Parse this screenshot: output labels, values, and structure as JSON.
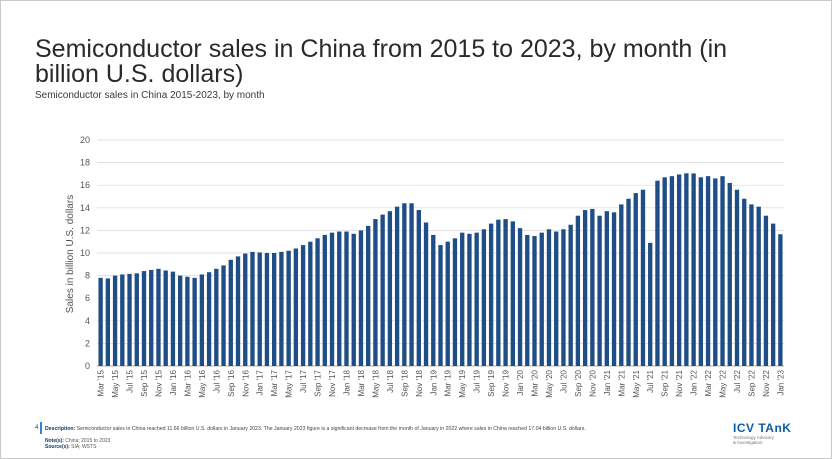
{
  "page": {
    "title": "Semiconductor sales in China from 2015 to 2023, by month (in billion U.S. dollars)",
    "subtitle": "Semiconductor sales in China 2015-2023, by month",
    "page_number": "4",
    "description_label": "Description:",
    "description_text": "Semiconductor sales in China reached 11.66 billion U.S. dollars in January 2023. The January 2023 figure is a significant decrease from the month of January in 2022 where sales in China reached 17.04 billion U.S. dollars.",
    "note_label": "Note(s):",
    "note_text": "China; 2015 to 2023",
    "source_label": "Source(s):",
    "source_text": "SIA; WSTS",
    "logo_text": "ICV TAnK",
    "logo_sub1": "Technology Advisory",
    "logo_sub2": "& Investigation"
  },
  "colors": {
    "bar": "#1f4e86",
    "grid": "#d9d9d9",
    "axis_text": "#555555"
  },
  "chart_data": {
    "type": "bar",
    "title": "",
    "xlabel": "",
    "ylabel": "Sales in billion U.S. dollars",
    "ylim": [
      0,
      20
    ],
    "yticks": [
      0,
      2,
      4,
      6,
      8,
      10,
      12,
      14,
      16,
      18,
      20
    ],
    "grid": true,
    "categories": [
      "Mar '15",
      "Apr '15",
      "May '15",
      "Jun '15",
      "Jul '15",
      "Aug '15",
      "Sep '15",
      "Oct '15",
      "Nov '15",
      "Dec '15",
      "Jan '16",
      "Feb '16",
      "Mar '16",
      "Apr '16",
      "May '16",
      "Jun '16",
      "Jul '16",
      "Aug '16",
      "Sep '16",
      "Oct '16",
      "Nov '16",
      "Dec '16",
      "Jan '17",
      "Feb '17",
      "Mar '17",
      "Apr '17",
      "May '17",
      "Jun '17",
      "Jul '17",
      "Aug '17",
      "Sep '17",
      "Oct '17",
      "Nov '17",
      "Dec '17",
      "Jan '18",
      "Feb '18",
      "Mar '18",
      "Apr '18",
      "May '18",
      "Jun '18",
      "Jul '18",
      "Aug '18",
      "Sep '18",
      "Oct '18",
      "Nov '18",
      "Dec '18",
      "Jan '19",
      "Feb '19",
      "Mar '19",
      "Apr '19",
      "May '19",
      "Jun '19",
      "Jul '19",
      "Aug '19",
      "Sep '19",
      "Oct '19",
      "Nov '19",
      "Dec '19",
      "Jan '20",
      "Feb '20",
      "Mar '20",
      "Apr '20",
      "May '20",
      "Jun '20",
      "Jul '20",
      "Aug '20",
      "Sep '20",
      "Oct '20",
      "Nov '20",
      "Dec '20",
      "Jan '21",
      "Feb '21",
      "Mar '21",
      "Apr '21",
      "May '21",
      "Jun '21",
      "Jul '21",
      "Aug '21",
      "Sep '21",
      "Oct '21",
      "Nov '21",
      "Dec '21",
      "Jan '22",
      "Feb '22",
      "Mar '22",
      "Apr '22",
      "May '22",
      "Jun '22",
      "Jul '22",
      "Aug '22",
      "Sep '22",
      "Oct '22",
      "Nov '22",
      "Dec '22",
      "Jan '23"
    ],
    "tick_labels": [
      "Mar '15",
      "May '15",
      "Jul '15",
      "Sep '15",
      "Nov '15",
      "Jan '16",
      "Mar '16",
      "May '16",
      "Jul '16",
      "Sep '16",
      "Nov '16",
      "Jan '17",
      "Mar '17",
      "May '17",
      "Jul '17",
      "Sep '17",
      "Nov '17",
      "Jan '18",
      "Mar '18",
      "May '18",
      "Jul '18",
      "Sep '18",
      "Nov '18",
      "Jan '19",
      "Mar '19",
      "May '19",
      "Jul '19",
      "Sep '19",
      "Nov '19",
      "Jan '20",
      "Mar '20",
      "May '20",
      "Jul '20",
      "Sep '20",
      "Nov '20",
      "Jan '21",
      "Mar '21",
      "May '21",
      "Jul '21",
      "Sep '21",
      "Nov '21",
      "Jan '22",
      "Mar '22",
      "May '22",
      "Jul '22",
      "Sep '22",
      "Nov '22",
      "Jan '23"
    ],
    "values": [
      7.8,
      7.75,
      8.0,
      8.1,
      8.15,
      8.2,
      8.4,
      8.5,
      8.6,
      8.45,
      8.35,
      8.0,
      7.9,
      7.8,
      8.1,
      8.3,
      8.6,
      8.9,
      9.4,
      9.7,
      9.95,
      10.1,
      10.05,
      10.0,
      10.0,
      10.1,
      10.2,
      10.4,
      10.7,
      11.0,
      11.3,
      11.6,
      11.8,
      11.9,
      11.9,
      11.7,
      12.0,
      12.4,
      13.0,
      13.4,
      13.7,
      14.1,
      14.4,
      14.4,
      13.8,
      12.7,
      11.6,
      10.7,
      11.0,
      11.3,
      11.8,
      11.7,
      11.8,
      12.1,
      12.6,
      12.95,
      13.0,
      12.8,
      12.2,
      11.6,
      11.5,
      11.8,
      12.1,
      11.9,
      12.1,
      12.5,
      13.3,
      13.8,
      13.9,
      13.3,
      13.7,
      13.6,
      14.3,
      14.8,
      15.3,
      15.6,
      10.9,
      16.4,
      16.7,
      16.8,
      16.95,
      17.05,
      17.04,
      16.7,
      16.8,
      16.6,
      16.8,
      16.2,
      15.6,
      14.8,
      14.3,
      14.1,
      13.3,
      12.6,
      11.66
    ]
  }
}
